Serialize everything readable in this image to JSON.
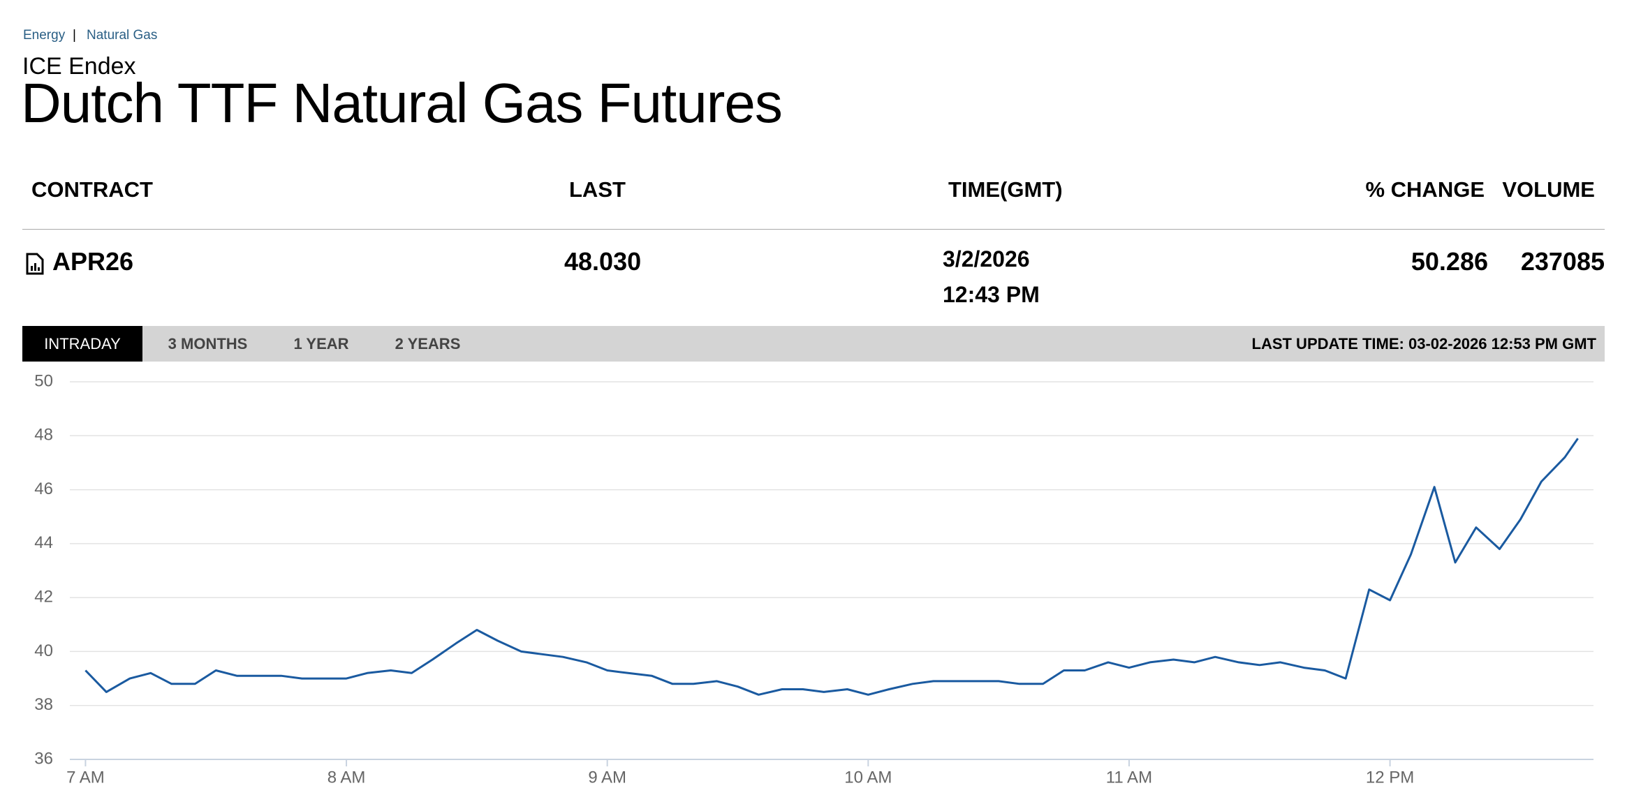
{
  "breadcrumb": [
    "Energy",
    "|",
    "Natural Gas"
  ],
  "header": {
    "exchange": "ICE Endex",
    "title": "Dutch TTF Natural Gas Futures"
  },
  "table": {
    "columns": [
      "CONTRACT",
      "LAST",
      "TIME(GMT)",
      "% CHANGE",
      "VOLUME"
    ],
    "rows": [
      [
        "APR26",
        "48.030",
        "3/2/2026",
        "12:43 PM",
        "50.286",
        "237085"
      ]
    ]
  },
  "tabs": [
    "INTRADAY",
    "3 MONTHS",
    "1 YEAR",
    "2 YEARS"
  ],
  "last_update": "LAST UPDATE TIME: 03-02-2026 12:53 PM GMT",
  "chart_data": {
    "type": "line",
    "x": [
      7,
      7.08,
      7.17,
      7.25,
      7.33,
      7.42,
      7.5,
      7.58,
      7.67,
      7.75,
      7.83,
      7.92,
      8,
      8.08,
      8.17,
      8.25,
      8.33,
      8.42,
      8.5,
      8.58,
      8.67,
      8.75,
      8.83,
      8.92,
      9,
      9.08,
      9.17,
      9.25,
      9.33,
      9.42,
      9.5,
      9.58,
      9.67,
      9.75,
      9.83,
      9.92,
      10,
      10.08,
      10.17,
      10.25,
      10.33,
      10.42,
      10.5,
      10.58,
      10.67,
      10.75,
      10.83,
      10.92,
      11,
      11.08,
      11.17,
      11.25,
      11.33,
      11.42,
      11.5,
      11.58,
      11.67,
      11.75,
      11.83,
      11.92,
      12,
      12.08,
      12.17,
      12.25,
      12.33,
      12.42,
      12.5,
      12.58,
      12.67,
      12.72
    ],
    "series": [
      {
        "color": "#1a5aa0",
        "values": [
          39.3,
          38.5,
          39.0,
          39.2,
          38.8,
          38.8,
          39.3,
          39.1,
          39.1,
          39.1,
          39.0,
          39.0,
          39.0,
          39.2,
          39.3,
          39.2,
          39.7,
          40.3,
          40.8,
          40.4,
          40.0,
          39.9,
          39.8,
          39.6,
          39.3,
          39.2,
          39.1,
          38.8,
          38.8,
          38.9,
          38.7,
          38.4,
          38.6,
          38.6,
          38.5,
          38.6,
          38.4,
          38.6,
          38.8,
          38.9,
          38.9,
          38.9,
          38.9,
          38.8,
          38.8,
          39.3,
          39.3,
          39.6,
          39.4,
          39.6,
          39.7,
          39.6,
          39.8,
          39.6,
          39.5,
          39.6,
          39.4,
          39.3,
          39.0,
          42.3,
          41.9,
          43.6,
          46.1,
          43.3,
          44.6,
          43.8,
          44.9,
          46.3,
          47.2,
          47.9
        ]
      }
    ],
    "xlim": [
      6.94,
      12.78
    ],
    "xticks": [
      {
        "value": 7,
        "label": "7 AM"
      },
      {
        "value": 8,
        "label": "8 AM"
      },
      {
        "value": 9,
        "label": "9 AM"
      },
      {
        "value": 10,
        "label": "10 AM"
      },
      {
        "value": 11,
        "label": "11 AM"
      },
      {
        "value": 12,
        "label": "12 PM"
      }
    ],
    "ylim": [
      36,
      50
    ],
    "yticks": [
      36,
      38,
      40,
      42,
      44,
      46,
      48,
      50
    ],
    "grid": true
  }
}
